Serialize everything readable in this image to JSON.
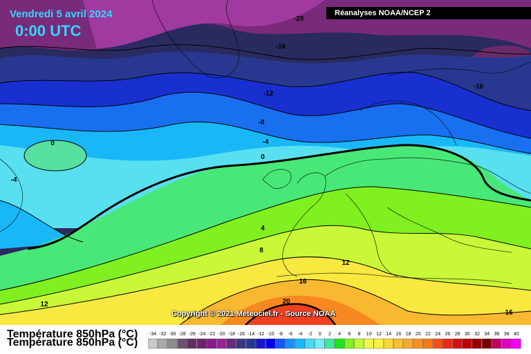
{
  "header": {
    "date": "Vendredi 5 avril 2024",
    "time": "0:00 UTC"
  },
  "source": "Réanalyses NOAA/NCEP 2",
  "copyright": "Copyright © 2021 Meteociel.fr - Source NOAA",
  "legend": {
    "title": "Température 850hPa (°C)",
    "scale_values": [
      -34,
      -32,
      -30,
      -28,
      -26,
      -24,
      -22,
      -20,
      -18,
      -16,
      -14,
      -12,
      -10,
      -8,
      -6,
      -4,
      -2,
      0,
      2,
      4,
      6,
      8,
      10,
      12,
      14,
      16,
      18,
      20,
      22,
      24,
      26,
      28,
      30,
      32,
      34,
      36,
      38,
      40
    ],
    "scale_labels": [
      "-34",
      "-32",
      "-30",
      "-28",
      "-26",
      "-24",
      "-22",
      "-20",
      "-18",
      "-16",
      "-14",
      "-12",
      "-10",
      "-8",
      "-6",
      "-4",
      "-2",
      "0",
      "2",
      "4",
      "6",
      "8",
      "10",
      "12",
      "14",
      "16",
      "18",
      "20",
      "22",
      "24",
      "26",
      "28",
      "30",
      "32",
      "34",
      "36",
      "38",
      "40"
    ],
    "scale_colors": [
      "#c8c8c8",
      "#a8a8a8",
      "#8c8c8c",
      "#705070",
      "#603060",
      "#702070",
      "#8a1a8a",
      "#a020a0",
      "#6a2a7a",
      "#383880",
      "#283890",
      "#1818c8",
      "#0000f0",
      "#1858f8",
      "#1890f8",
      "#18b8f8",
      "#48d8f8",
      "#70f0f8",
      "#40e8a0",
      "#18e818",
      "#80f020",
      "#c0f838",
      "#f0f848",
      "#f8f040",
      "#f8d830",
      "#f8c030",
      "#f8a830",
      "#f89020",
      "#f87818",
      "#f85018",
      "#f02818",
      "#d81010",
      "#c00000",
      "#980000",
      "#780000",
      "#c00060",
      "#e000c0",
      "#f000f0"
    ]
  },
  "contours": [
    {
      "label": "-20"
    },
    {
      "label": "-16"
    },
    {
      "label": "-16"
    },
    {
      "label": "-12"
    },
    {
      "label": "-8"
    },
    {
      "label": "-4"
    },
    {
      "label": "0"
    },
    {
      "label": "0"
    },
    {
      "label": "-4"
    },
    {
      "label": "4"
    },
    {
      "label": "8"
    },
    {
      "label": "12"
    },
    {
      "label": "12"
    },
    {
      "label": "16"
    },
    {
      "label": "20"
    },
    {
      "label": "16"
    }
  ],
  "colors": {
    "title_cyan": "#30d8ff",
    "source_bg": "#000000"
  }
}
